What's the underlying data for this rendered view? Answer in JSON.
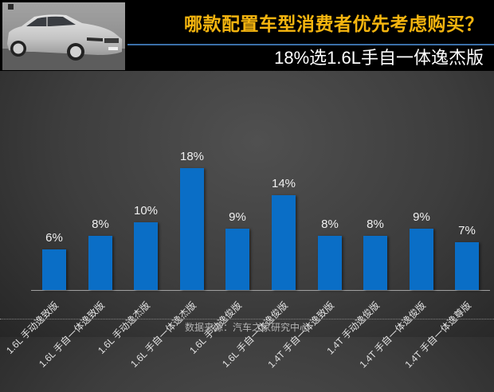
{
  "header": {
    "title": "哪款配置车型消费者优先考虑购买？",
    "subtitle": "18%选1.6L手自一体逸杰版",
    "title_color": "#f5b50f",
    "accent_line_color": "#3b6fa8",
    "photo_icon": "car-photo"
  },
  "footer": {
    "source": "数据来源：汽车之家研究中心"
  },
  "chart_data": {
    "type": "bar",
    "title": "哪款配置车型消费者优先考虑购买？",
    "subtitle": "18%选1.6L手自一体逸杰版",
    "categories": [
      "1.6L 手动逸致版",
      "1.6L 手自一体逸致版",
      "1.6L 手动逸杰版",
      "1.6L 手自一体逸杰版",
      "1.6L 手动逸俊版",
      "1.6L 手自一体逸俊版",
      "1.4T 手自一体逸致版",
      "1.4T 手动逸俊版",
      "1.4T 手自一体逸俊版",
      "1.4T 手自一体逸尊版"
    ],
    "values": [
      6,
      8,
      10,
      18,
      9,
      14,
      8,
      8,
      9,
      7
    ],
    "value_labels": [
      "6%",
      "8%",
      "10%",
      "18%",
      "9%",
      "14%",
      "8%",
      "8%",
      "9%",
      "7%"
    ],
    "unit": "%",
    "xlabel": "",
    "ylabel": "",
    "ylim": [
      0,
      18
    ],
    "grid": false,
    "legend": null,
    "bar_color": "#0a6ec6",
    "source": "数据来源：汽车之家研究中心"
  }
}
